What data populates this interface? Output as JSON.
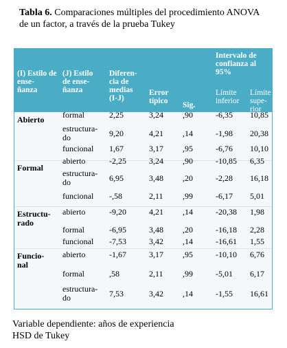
{
  "title": {
    "label": "Tabla 6.",
    "text": "Comparaciones múltiples del procedimiento ANOVA\nde un factor, a través de la prueba Tukey"
  },
  "table": {
    "header": {
      "col1": "(I) Estilo de\nense-\nñanza",
      "col2": "(J) Estilo\nde ense-\nñanza",
      "col3": "Diferen-\ncia de\nmedias\n(I-J)",
      "col4": "Error\ntípico",
      "col5": "Sig.",
      "interval": "Intervalo de\nconfianza al\n95%",
      "col6": "Límite\ninferior",
      "col7": "Límite\nsupe-\nrior"
    },
    "groups": [
      {
        "label": "Abierto",
        "rows": [
          [
            "formal",
            "2,25",
            "3,24",
            ",90",
            "-6,35",
            "10,85"
          ],
          [
            "estructura-\ndo",
            "9,20",
            "4,21",
            ",14",
            "-1,98",
            "20,38"
          ],
          [
            "funcional",
            "1,67",
            "3,17",
            ",95",
            "-6,76",
            "10,10"
          ]
        ]
      },
      {
        "label": "Formal",
        "rows": [
          [
            "abierto",
            "-2,25",
            "3,24",
            ",90",
            "-10,85",
            "6,35"
          ],
          [
            "estructura-\ndo",
            "6,95",
            "3,48",
            ",20",
            "-2,28",
            "16,18"
          ],
          [
            "funcional",
            "-,58",
            "2,11",
            ",99",
            "-6,17",
            "5,01"
          ]
        ]
      },
      {
        "label": "Estructu-\nrado",
        "rows": [
          [
            "abierto",
            "-9,20",
            "4,21",
            ",14",
            "-20,38",
            "1,98"
          ],
          [
            "formal",
            "-6,95",
            "3,48",
            ",20",
            "-16,18",
            "2,28"
          ],
          [
            "funcional",
            "-7,53",
            "3,42",
            ",14",
            "-16,61",
            "1,55"
          ]
        ]
      },
      {
        "label": "Funcio-\nnal",
        "rows": [
          [
            "abierto",
            "-1,67",
            "3,17",
            ",95",
            "-10,10",
            "6,76"
          ],
          [
            "formal",
            ",58",
            "2,11",
            ",99",
            "-5,01",
            "6,17"
          ],
          [
            "estructura-\ndo",
            "7,53",
            "3,42",
            ",14",
            "-1,55",
            "16,61"
          ]
        ]
      }
    ]
  },
  "footer": [
    "Variable dependiente: años de experiencia",
    "HSD de Tukey"
  ]
}
